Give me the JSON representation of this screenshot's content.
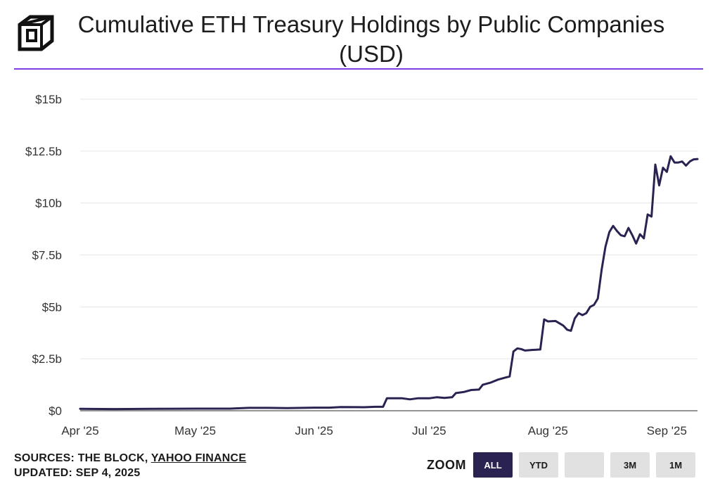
{
  "header": {
    "title": "Cumulative ETH Treasury Holdings by Public Companies (USD)",
    "logo_icon": "the-block-cube-icon"
  },
  "footer": {
    "sources_prefix": "SOURCES: THE BLOCK, ",
    "sources_link": "YAHOO FINANCE",
    "updated": "UPDATED: SEP 4, 2025"
  },
  "zoom": {
    "label": "ZOOM",
    "buttons": [
      "ALL",
      "YTD",
      "",
      "3M",
      "1M"
    ],
    "active": "ALL"
  },
  "colors": {
    "line": "#2a2352",
    "accent_rule": "#7b3fe4",
    "active_button": "#2a2352"
  },
  "chart_data": {
    "type": "line",
    "title": "Cumulative ETH Treasury Holdings by Public Companies (USD)",
    "xlabel": "",
    "ylabel": "",
    "y_unit": "billion USD",
    "ylim": [
      0,
      15
    ],
    "yticks": [
      "$0",
      "$2.5b",
      "$5b",
      "$7.5b",
      "$10b",
      "$12.5b",
      "$15b"
    ],
    "ytick_values": [
      0,
      2.5,
      5,
      7.5,
      10,
      12.5,
      15
    ],
    "xticks": [
      "Apr '25",
      "May '25",
      "Jun '25",
      "Jul '25",
      "Aug '25",
      "Sep '25"
    ],
    "xtick_dates": [
      "2025-04-01",
      "2025-05-01",
      "2025-06-01",
      "2025-07-01",
      "2025-08-01",
      "2025-09-01"
    ],
    "grid": true,
    "legend": "none",
    "series": [
      {
        "points": [
          [
            "2025-04-01",
            0.09
          ],
          [
            "2025-04-10",
            0.08
          ],
          [
            "2025-04-20",
            0.09
          ],
          [
            "2025-05-01",
            0.1
          ],
          [
            "2025-05-10",
            0.1
          ],
          [
            "2025-05-15",
            0.14
          ],
          [
            "2025-05-20",
            0.14
          ],
          [
            "2025-05-25",
            0.13
          ],
          [
            "2025-06-01",
            0.15
          ],
          [
            "2025-06-05",
            0.15
          ],
          [
            "2025-06-08",
            0.18
          ],
          [
            "2025-06-14",
            0.17
          ],
          [
            "2025-06-17",
            0.19
          ],
          [
            "2025-06-19",
            0.19
          ],
          [
            "2025-06-20",
            0.6
          ],
          [
            "2025-06-24",
            0.6
          ],
          [
            "2025-06-26",
            0.55
          ],
          [
            "2025-06-28",
            0.6
          ],
          [
            "2025-07-01",
            0.6
          ],
          [
            "2025-07-03",
            0.65
          ],
          [
            "2025-07-05",
            0.62
          ],
          [
            "2025-07-07",
            0.65
          ],
          [
            "2025-07-08",
            0.85
          ],
          [
            "2025-07-10",
            0.9
          ],
          [
            "2025-07-12",
            1.0
          ],
          [
            "2025-07-14",
            1.02
          ],
          [
            "2025-07-15",
            1.25
          ],
          [
            "2025-07-17",
            1.35
          ],
          [
            "2025-07-19",
            1.5
          ],
          [
            "2025-07-21",
            1.6
          ],
          [
            "2025-07-22",
            1.65
          ],
          [
            "2025-07-23",
            2.85
          ],
          [
            "2025-07-24",
            3.0
          ],
          [
            "2025-07-25",
            2.97
          ],
          [
            "2025-07-26",
            2.9
          ],
          [
            "2025-07-28",
            2.93
          ],
          [
            "2025-07-30",
            2.95
          ],
          [
            "2025-07-31",
            4.4
          ],
          [
            "2025-08-01",
            4.3
          ],
          [
            "2025-08-03",
            4.32
          ],
          [
            "2025-08-05",
            4.1
          ],
          [
            "2025-08-06",
            3.9
          ],
          [
            "2025-08-07",
            3.85
          ],
          [
            "2025-08-08",
            4.45
          ],
          [
            "2025-08-09",
            4.7
          ],
          [
            "2025-08-10",
            4.6
          ],
          [
            "2025-08-11",
            4.7
          ],
          [
            "2025-08-12",
            5.0
          ],
          [
            "2025-08-13",
            5.1
          ],
          [
            "2025-08-14",
            5.4
          ],
          [
            "2025-08-15",
            6.8
          ],
          [
            "2025-08-16",
            7.9
          ],
          [
            "2025-08-17",
            8.6
          ],
          [
            "2025-08-18",
            8.9
          ],
          [
            "2025-08-19",
            8.65
          ],
          [
            "2025-08-20",
            8.45
          ],
          [
            "2025-08-21",
            8.4
          ],
          [
            "2025-08-22",
            8.8
          ],
          [
            "2025-08-23",
            8.45
          ],
          [
            "2025-08-24",
            8.05
          ],
          [
            "2025-08-25",
            8.5
          ],
          [
            "2025-08-26",
            8.3
          ],
          [
            "2025-08-27",
            9.45
          ],
          [
            "2025-08-28",
            9.35
          ],
          [
            "2025-08-29",
            11.85
          ],
          [
            "2025-08-30",
            10.85
          ],
          [
            "2025-08-31",
            11.7
          ],
          [
            "2025-09-01",
            11.5
          ],
          [
            "2025-09-02",
            12.25
          ],
          [
            "2025-09-03",
            11.95
          ],
          [
            "2025-09-04",
            11.95
          ],
          [
            "2025-09-05",
            12.0
          ],
          [
            "2025-09-06",
            11.8
          ],
          [
            "2025-09-07",
            12.0
          ],
          [
            "2025-09-08",
            12.1
          ],
          [
            "2025-09-09",
            12.12
          ]
        ]
      }
    ]
  }
}
